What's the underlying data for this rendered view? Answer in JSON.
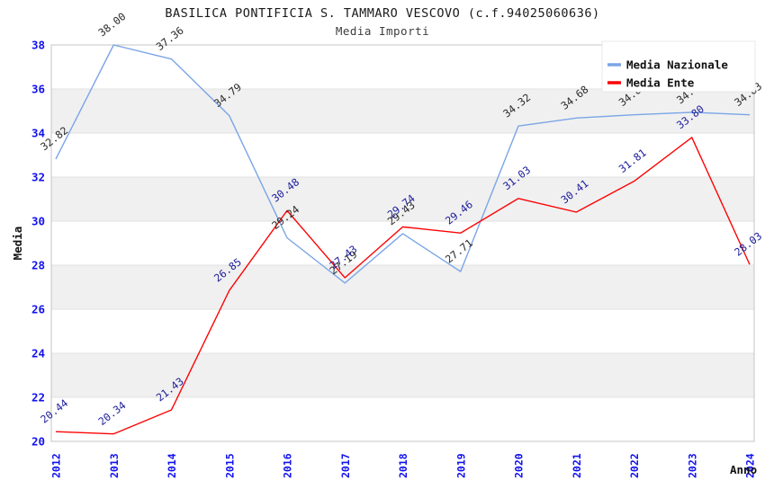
{
  "header": {
    "title": "BASILICA PONTIFICIA S. TAMMARO VESCOVO (c.f.94025060636)",
    "subtitle": "Media Importi"
  },
  "chart_data": {
    "type": "line",
    "title": "BASILICA PONTIFICIA S. TAMMARO VESCOVO (c.f.94025060636)",
    "subtitle": "Media Importi",
    "xlabel": "Anno",
    "ylabel": "Media",
    "x": [
      2012,
      2013,
      2014,
      2015,
      2016,
      2017,
      2018,
      2019,
      2020,
      2021,
      2022,
      2023,
      2024
    ],
    "series": [
      {
        "name": "Media Nazionale",
        "color": "#7aa5e6",
        "label_color": "#2a2a2a",
        "values": [
          32.82,
          38.0,
          37.36,
          34.79,
          29.24,
          27.19,
          29.43,
          27.71,
          34.32,
          34.68,
          34.83,
          34.94,
          34.83
        ]
      },
      {
        "name": "Media Ente",
        "color": "#fb0505",
        "label_color": "#1c1c9c",
        "values": [
          20.44,
          20.34,
          21.43,
          26.85,
          30.48,
          27.43,
          29.74,
          29.46,
          31.03,
          30.41,
          31.81,
          33.8,
          28.03
        ]
      }
    ],
    "ylim": [
      20,
      38
    ],
    "ytick_step": 2,
    "grid": "banded",
    "legend_position": "top-right",
    "legend_labels": [
      "Media Nazionale",
      "Media Ente"
    ],
    "colors": {
      "band_gray": "#f0f0f0",
      "gridline": "#e2e2e2",
      "plot_border": "#c4c4c4",
      "tick_label": "#1212ee",
      "axis_title": "#111111",
      "legend_text": "#111111",
      "legend_border": "#e8e8e8",
      "legend_bg": "#ffffff"
    }
  }
}
